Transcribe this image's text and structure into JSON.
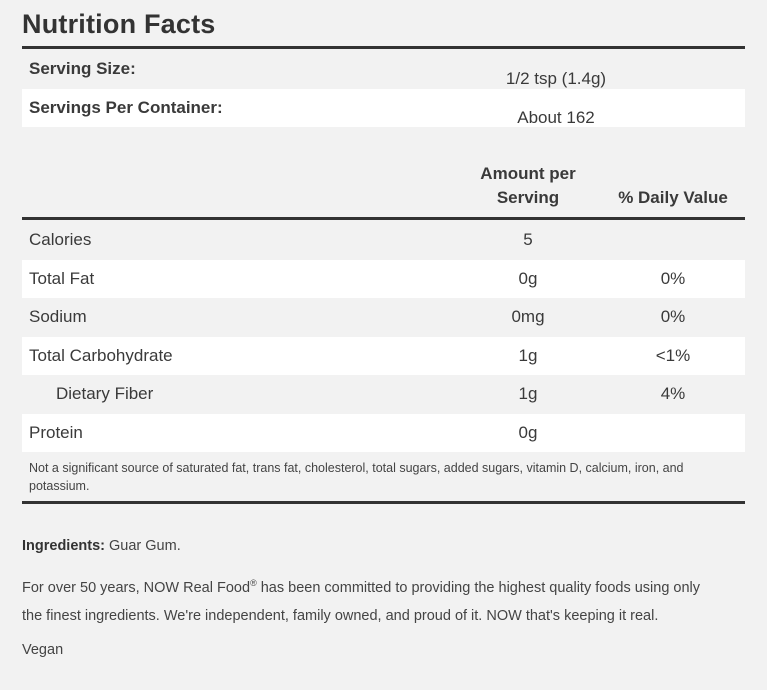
{
  "title": "Nutrition Facts",
  "serving": {
    "size_label": "Serving Size:",
    "size_value": "1/2 tsp (1.4g)",
    "per_container_label": "Servings Per Container:",
    "per_container_value": "About 162"
  },
  "columns": {
    "amount_line1": "Amount per",
    "amount_line2": "Serving",
    "daily_value": "% Daily Value"
  },
  "nutrients": [
    {
      "name": "Calories",
      "amount": "5",
      "dv": ""
    },
    {
      "name": "Total Fat",
      "amount": "0g",
      "dv": "0%"
    },
    {
      "name": "Sodium",
      "amount": "0mg",
      "dv": "0%"
    },
    {
      "name": "Total Carbohydrate",
      "amount": "1g",
      "dv": "<1%"
    },
    {
      "name": "Dietary Fiber",
      "amount": "1g",
      "dv": "4%"
    },
    {
      "name": "Protein",
      "amount": "0g",
      "dv": ""
    }
  ],
  "footnote": "Not a significant source of saturated fat, trans fat, cholesterol, total sugars, added sugars, vitamin D, calcium, iron, and potassium.",
  "ingredients": {
    "label": "Ingredients:",
    "value": "Guar Gum."
  },
  "description": {
    "part1": "For over 50 years, NOW Real Food",
    "registered": "®",
    "part2": " has been committed to providing the highest quality foods using only",
    "line2": "the finest ingredients. We're independent, family owned, and proud of it. NOW that's keeping it real."
  },
  "tag": "Vegan"
}
